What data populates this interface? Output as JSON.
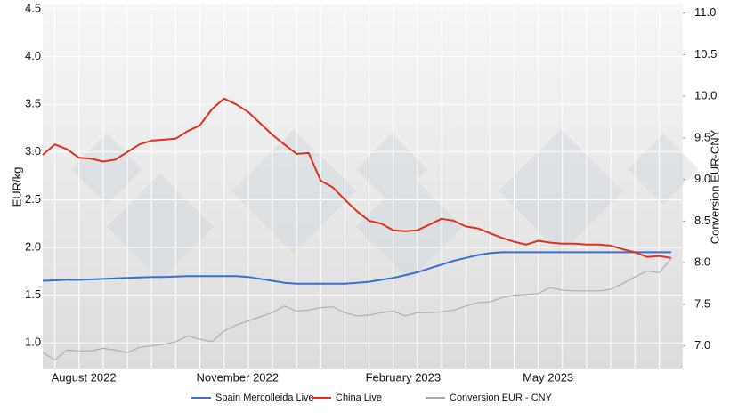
{
  "chart_data": {
    "type": "line",
    "categories": [
      null,
      "August 2022",
      null,
      null,
      null,
      null,
      null,
      null,
      null,
      null,
      null,
      null,
      null,
      "November 2022",
      null,
      null,
      null,
      null,
      null,
      null,
      null,
      null,
      null,
      null,
      null,
      null,
      null,
      "February 2023",
      null,
      null,
      null,
      null,
      null,
      null,
      null,
      null,
      null,
      null,
      null,
      null,
      "May 2023",
      null,
      null,
      null,
      null,
      null,
      null,
      null,
      null,
      null,
      null,
      null,
      null
    ],
    "y_label": "EUR/kg",
    "y2_label": "Conversion EUR-CNY",
    "ylim": [
      0.75,
      4.5
    ],
    "yticks": [
      {
        "value": 1.0,
        "label": "1.0"
      },
      1.5,
      {
        "value": 2.0,
        "label": "2.0"
      },
      2.5,
      {
        "value": 3.0,
        "label": "3.0"
      },
      3.5,
      {
        "value": 4.0,
        "label": "4.0"
      },
      4.5
    ],
    "y2lim": [
      6.75,
      11.05
    ],
    "y2ticks": [
      {
        "value": 7.0,
        "label": "7.0"
      },
      7.5,
      {
        "value": 8.0,
        "label": "8.0"
      },
      8.5,
      {
        "value": 9.0,
        "label": "9.0"
      },
      9.5,
      {
        "value": 10.0,
        "label": "10.0"
      },
      10.5,
      {
        "value": 11.0,
        "label": "11.0"
      }
    ],
    "grid": true,
    "series": [
      {
        "name": "Spain Mercolleida Live",
        "color": "#3a6fd0",
        "width": 2,
        "values": [
          1.65,
          1.655,
          1.66,
          1.66,
          1.665,
          1.67,
          1.675,
          1.68,
          1.685,
          1.69,
          1.69,
          1.695,
          1.7,
          1.7,
          1.7,
          1.7,
          1.7,
          1.69,
          1.67,
          1.65,
          1.63,
          1.62,
          1.62,
          1.62,
          1.62,
          1.62,
          1.63,
          1.64,
          1.66,
          1.68,
          1.71,
          1.74,
          1.78,
          1.82,
          1.86,
          1.89,
          1.92,
          1.94,
          1.95,
          1.95,
          1.95,
          1.95,
          1.95,
          1.95,
          1.95,
          1.95,
          1.95,
          1.95,
          1.95,
          1.95,
          1.95,
          1.95,
          1.95
        ]
      },
      {
        "name": "China Live",
        "color": "#e0311c",
        "width": 2,
        "values": [
          2.97,
          3.08,
          3.03,
          2.94,
          2.93,
          2.9,
          2.92,
          3.0,
          3.08,
          3.12,
          3.13,
          3.14,
          3.22,
          3.28,
          3.45,
          3.56,
          3.5,
          3.42,
          3.3,
          3.18,
          3.08,
          2.98,
          2.99,
          2.7,
          2.63,
          2.5,
          2.38,
          2.28,
          2.25,
          2.18,
          2.17,
          2.18,
          2.24,
          2.3,
          2.28,
          2.22,
          2.2,
          2.15,
          2.1,
          2.06,
          2.03,
          2.07,
          2.05,
          2.04,
          2.04,
          2.03,
          2.03,
          2.02,
          1.98,
          1.95,
          1.9,
          1.91,
          1.89
        ]
      },
      {
        "name": "Conversion EUR - CNY",
        "color": "#a8a8a8",
        "width": 1,
        "axis": "y2",
        "values": [
          6.92,
          6.83,
          6.95,
          6.94,
          6.94,
          6.97,
          6.95,
          6.92,
          6.98,
          7.0,
          7.02,
          7.05,
          7.12,
          7.08,
          7.05,
          7.18,
          7.25,
          7.3,
          7.35,
          7.4,
          7.48,
          7.42,
          7.43,
          7.46,
          7.47,
          7.4,
          7.36,
          7.37,
          7.4,
          7.42,
          7.36,
          7.4,
          7.4,
          7.41,
          7.43,
          7.48,
          7.52,
          7.53,
          7.58,
          7.61,
          7.62,
          7.63,
          7.7,
          7.67,
          7.66,
          7.66,
          7.66,
          7.68,
          7.75,
          7.83,
          7.9,
          7.88,
          8.05
        ]
      }
    ]
  }
}
